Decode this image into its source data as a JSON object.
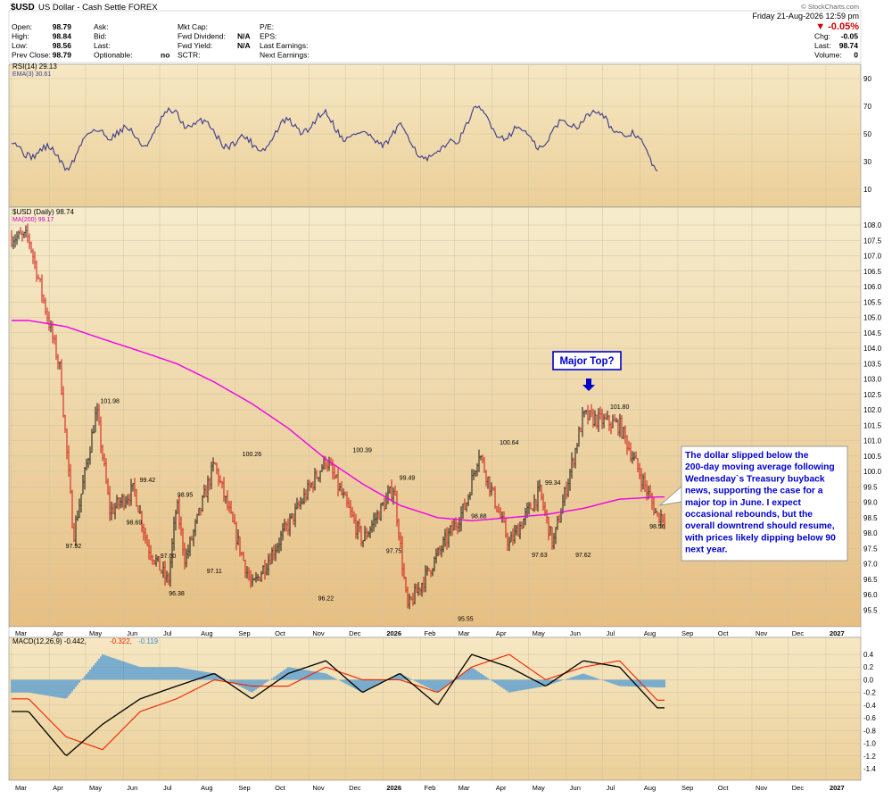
{
  "header": {
    "symbol": "$USD",
    "name": "US Dollar - Cash Settle FOREX",
    "date": "Friday   21-Aug-2026  12:59 pm",
    "change_pct": "▼ -0.05%",
    "watermark": "© StockCharts.com",
    "rows": [
      {
        "c1l": "Open:",
        "c1v": "98.79",
        "c2l": "Ask:",
        "c2v": "",
        "c3l": "Mkt Cap:",
        "c3v": "",
        "c4l": "P/E:",
        "c4v": "",
        "c5l": "",
        "c5v": ""
      },
      {
        "c1l": "High:",
        "c1v": "98.84",
        "c2l": "Bid:",
        "c2v": "",
        "c3l": "Fwd Dividend:",
        "c3v": "N/A",
        "c4l": "EPS:",
        "c4v": "",
        "c5l": "Chg:",
        "c5v": "-0.05"
      },
      {
        "c1l": "Low:",
        "c1v": "98.56",
        "c2l": "Last:",
        "c2v": "",
        "c3l": "Fwd Yield:",
        "c3v": "N/A",
        "c4l": "Last Earnings:",
        "c4v": "",
        "c5l": "Last:",
        "c5v": "98.74"
      },
      {
        "c1l": "Prev Close:",
        "c1v": "98.79",
        "c2l": "Optionable:",
        "c2v": "no",
        "c3l": "SCTR:",
        "c3v": "",
        "c4l": "Next Earnings:",
        "c4v": "",
        "c5l": "Volume:",
        "c5v": "0"
      }
    ]
  },
  "colors": {
    "panel_bg": "#f3e1b4",
    "price_bg_top": "#f6eccc",
    "price_bg_bottom": "#e6bf83",
    "grid": "#cfc3a3",
    "candle_red": "#cc0000",
    "candle_black": "#000000",
    "ma200": "#ee00ee",
    "rsi": "#3a3a8c",
    "macd": "#000000",
    "signal": "#ee2200",
    "hist": "#3a8fd8",
    "annot_blue": "#0000cc"
  },
  "rsi": {
    "legend_1": "RSI(14) 29.13",
    "legend_2": "EMA(3) 30.61",
    "ticks": [
      90,
      70,
      50,
      30,
      10
    ]
  },
  "price": {
    "legend_1": "$USD (Daily) 98.74",
    "legend_2": "MA(200) 99.17",
    "ticks": [
      "108.0",
      "107.5",
      "107.0",
      "106.5",
      "106.0",
      "105.5",
      "105.0",
      "104.5",
      "104.0",
      "103.5",
      "103.0",
      "102.5",
      "102.0",
      "101.5",
      "101.0",
      "100.5",
      "100.0",
      "99.5",
      "99.0",
      "98.5",
      "98.0",
      "97.5",
      "97.0",
      "96.5",
      "96.0",
      "95.5"
    ]
  },
  "macd": {
    "legend_1": "MACD(12,26,9) -0.442,",
    "legend_2": "-0.322,",
    "legend_3": "-0.119",
    "ticks": [
      "0.4",
      "0.2",
      "0.0",
      "-0.2",
      "-0.4",
      "-0.6",
      "-0.8",
      "-1.0",
      "-1.2",
      "-1.4"
    ]
  },
  "months_top": [
    "Mar",
    "Apr",
    "May",
    "Jun",
    "Jul",
    "Aug",
    "Sep",
    "Oct",
    "Nov",
    "Dec",
    "2026",
    "Feb",
    "Mar",
    "Apr",
    "May",
    "Jun",
    "Jul",
    "Aug",
    "Sep",
    "Oct",
    "Nov",
    "Dec",
    "2027",
    "Feb"
  ],
  "months_bottom": [
    "Mar",
    "Apr",
    "May",
    "Jun",
    "Jul",
    "Aug",
    "Sep",
    "Oct",
    "Nov",
    "Dec",
    "2026",
    "Feb",
    "Mar",
    "Apr",
    "May",
    "Jun",
    "Jul",
    "Aug",
    "Sep",
    "Oct",
    "Nov",
    "Dec",
    "2027",
    "Feb"
  ],
  "peak_labels": [
    {
      "text": "101.98"
    },
    {
      "text": "97.92"
    },
    {
      "text": "98.69"
    },
    {
      "text": "99.42"
    },
    {
      "text": "97.60"
    },
    {
      "text": "96.38"
    },
    {
      "text": "98.95"
    },
    {
      "text": "97.11"
    },
    {
      "text": "100.26"
    },
    {
      "text": "96.22"
    },
    {
      "text": "100.39"
    },
    {
      "text": "97.75"
    },
    {
      "text": "99.49"
    },
    {
      "text": "95.55"
    },
    {
      "text": "98.88"
    },
    {
      "text": "100.64"
    },
    {
      "text": "97.63"
    },
    {
      "text": "99.34"
    },
    {
      "text": "97.62"
    },
    {
      "text": "101.80"
    },
    {
      "text": "98.56"
    }
  ],
  "annotations": {
    "major_top": "Major Top?",
    "comment": [
      "The dollar slipped below the",
      "200-day moving average following",
      "Wednesday`s Treasury buyback",
      "news, supporting the case for a",
      "major top in June. I expect",
      "occasional rebounds, but the",
      "overall downtrend should resume,",
      "with prices likely dipping below 90",
      "next year."
    ]
  },
  "chart_data": {
    "type": "candlestick",
    "symbol": "$USD",
    "x_range": [
      "2025-03",
      "2027-02"
    ],
    "price_ylim": [
      95.25,
      108.0
    ],
    "key_points": [
      {
        "date": "2025-03",
        "value": 107.6
      },
      {
        "date": "2025-04",
        "value": 103.3
      },
      {
        "date": "2025-04",
        "value": 97.92
      },
      {
        "date": "2025-05",
        "value": 101.98
      },
      {
        "date": "2025-05",
        "value": 98.69
      },
      {
        "date": "2025-06",
        "value": 99.42
      },
      {
        "date": "2025-06",
        "value": 97.6
      },
      {
        "date": "2025-07",
        "value": 96.38
      },
      {
        "date": "2025-07",
        "value": 98.95
      },
      {
        "date": "2025-07",
        "value": 97.11
      },
      {
        "date": "2025-08",
        "value": 100.26
      },
      {
        "date": "2025-09",
        "value": 96.22
      },
      {
        "date": "2025-11",
        "value": 100.39
      },
      {
        "date": "2025-12",
        "value": 97.75
      },
      {
        "date": "2026-01",
        "value": 99.49
      },
      {
        "date": "2026-01",
        "value": 95.55
      },
      {
        "date": "2026-03",
        "value": 98.88
      },
      {
        "date": "2026-03",
        "value": 100.64
      },
      {
        "date": "2026-04",
        "value": 97.63
      },
      {
        "date": "2026-05",
        "value": 99.34
      },
      {
        "date": "2026-05",
        "value": 97.62
      },
      {
        "date": "2026-06",
        "value": 101.8
      },
      {
        "date": "2026-07",
        "value": 101.5
      },
      {
        "date": "2026-08",
        "value": 98.56
      }
    ],
    "ma200_points": [
      {
        "date": "2025-03",
        "value": 104.9
      },
      {
        "date": "2025-04",
        "value": 104.7
      },
      {
        "date": "2025-05",
        "value": 104.3
      },
      {
        "date": "2025-06",
        "value": 103.9
      },
      {
        "date": "2025-07",
        "value": 103.5
      },
      {
        "date": "2025-08",
        "value": 102.9
      },
      {
        "date": "2025-09",
        "value": 102.2
      },
      {
        "date": "2025-10",
        "value": 101.4
      },
      {
        "date": "2025-11",
        "value": 100.4
      },
      {
        "date": "2025-12",
        "value": 99.6
      },
      {
        "date": "2026-01",
        "value": 98.9
      },
      {
        "date": "2026-02",
        "value": 98.5
      },
      {
        "date": "2026-03",
        "value": 98.4
      },
      {
        "date": "2026-04",
        "value": 98.5
      },
      {
        "date": "2026-05",
        "value": 98.6
      },
      {
        "date": "2026-06",
        "value": 98.8
      },
      {
        "date": "2026-07",
        "value": 99.1
      },
      {
        "date": "2026-08",
        "value": 99.17
      }
    ],
    "rsi_points": [
      {
        "date": "2025-03",
        "value": 40
      },
      {
        "date": "2025-04",
        "value": 30
      },
      {
        "date": "2025-05",
        "value": 55
      },
      {
        "date": "2025-06",
        "value": 45
      },
      {
        "date": "2025-07",
        "value": 65
      },
      {
        "date": "2025-08",
        "value": 50
      },
      {
        "date": "2025-09",
        "value": 40
      },
      {
        "date": "2025-10",
        "value": 55
      },
      {
        "date": "2025-11",
        "value": 60
      },
      {
        "date": "2025-12",
        "value": 45
      },
      {
        "date": "2026-01",
        "value": 50
      },
      {
        "date": "2026-02",
        "value": 30
      },
      {
        "date": "2026-03",
        "value": 65
      },
      {
        "date": "2026-04",
        "value": 50
      },
      {
        "date": "2026-05",
        "value": 45
      },
      {
        "date": "2026-06",
        "value": 65
      },
      {
        "date": "2026-07",
        "value": 55
      },
      {
        "date": "2026-08",
        "value": 29.13
      }
    ],
    "macd_points": [
      {
        "date": "2025-03",
        "macd": -0.5,
        "signal": -0.3
      },
      {
        "date": "2025-04",
        "macd": -1.2,
        "signal": -0.9
      },
      {
        "date": "2025-05",
        "macd": -0.7,
        "signal": -1.1
      },
      {
        "date": "2025-06",
        "macd": -0.3,
        "signal": -0.5
      },
      {
        "date": "2025-07",
        "macd": -0.1,
        "signal": -0.3
      },
      {
        "date": "2025-08",
        "macd": 0.1,
        "signal": 0.0
      },
      {
        "date": "2025-09",
        "macd": -0.3,
        "signal": -0.1
      },
      {
        "date": "2025-10",
        "macd": 0.1,
        "signal": -0.1
      },
      {
        "date": "2025-11",
        "macd": 0.3,
        "signal": 0.2
      },
      {
        "date": "2025-12",
        "macd": -0.2,
        "signal": 0.0
      },
      {
        "date": "2026-01",
        "macd": 0.1,
        "signal": 0.0
      },
      {
        "date": "2026-02",
        "macd": -0.4,
        "signal": -0.2
      },
      {
        "date": "2026-03",
        "macd": 0.4,
        "signal": 0.2
      },
      {
        "date": "2026-04",
        "macd": 0.2,
        "signal": 0.4
      },
      {
        "date": "2026-05",
        "macd": -0.1,
        "signal": 0.0
      },
      {
        "date": "2026-06",
        "macd": 0.3,
        "signal": 0.2
      },
      {
        "date": "2026-07",
        "macd": 0.2,
        "signal": 0.3
      },
      {
        "date": "2026-08",
        "macd": -0.442,
        "signal": -0.322
      }
    ],
    "rsi_ylim": [
      0,
      100
    ],
    "macd_ylim": [
      -1.5,
      0.5
    ],
    "grid": true
  }
}
